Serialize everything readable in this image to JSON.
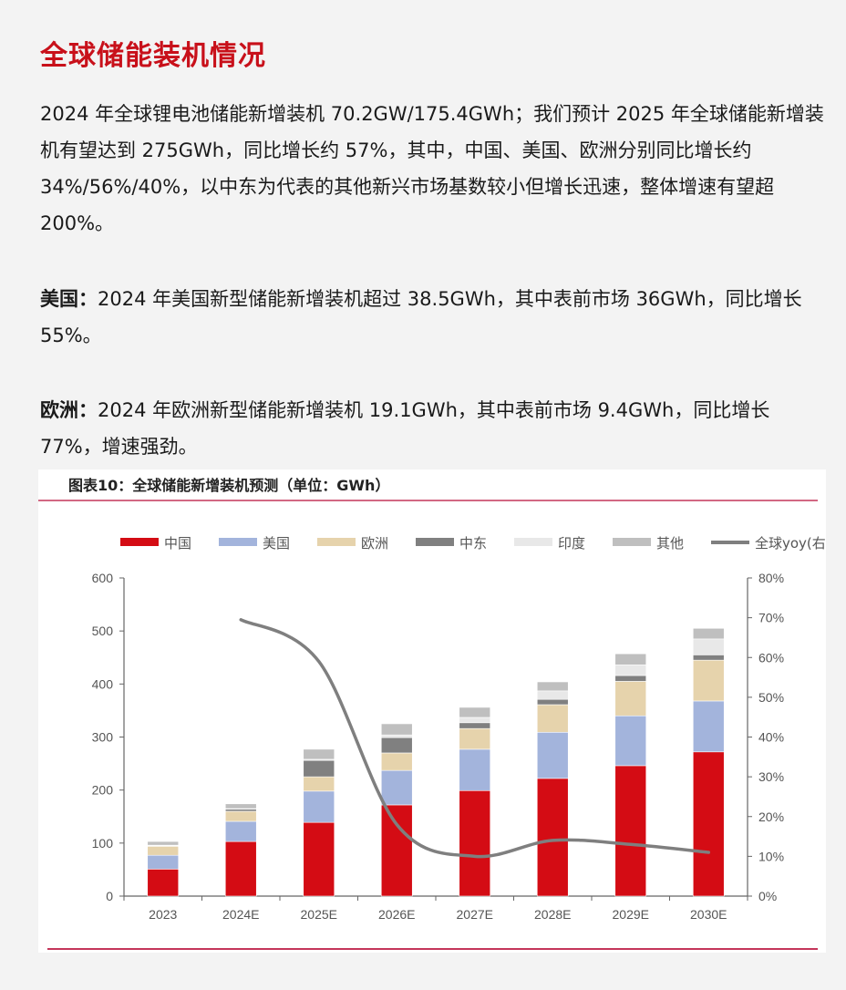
{
  "title": "全球储能装机情况",
  "paragraphs": [
    {
      "lead": "",
      "text": "2024 年全球锂电池储能新增装机 70.2GW/175.4GWh；我们预计 2025 年全球储能新增装机有望达到 275GWh，同比增长约 57%，其中，中国、美国、欧洲分别同比增长约 34%/56%/40%，以中东为代表的其他新兴市场基数较小但增长迅速，整体增速有望超 200%。"
    },
    {
      "lead": "美国：",
      "text": "2024 年美国新型储能新增装机超过 38.5GWh，其中表前市场 36GWh，同比增长 55%。"
    },
    {
      "lead": "欧洲：",
      "text": "2024 年欧洲新型储能新增装机 19.1GWh，其中表前市场 9.4GWh，同比增长 77%，增速强劲。"
    }
  ],
  "chart_data": {
    "type": "bar",
    "stacked": true,
    "title": "图表10：全球储能新增装机预测（单位：GWh）",
    "categories": [
      "2023",
      "2024E",
      "2025E",
      "2026E",
      "2027E",
      "2028E",
      "2029E",
      "2030E"
    ],
    "series": [
      {
        "name": "中国",
        "color": "#d40c14",
        "values": [
          51,
          103,
          139,
          172,
          199,
          222,
          246,
          272
        ]
      },
      {
        "name": "美国",
        "color": "#a3b4dc",
        "values": [
          26,
          38,
          59,
          65,
          78,
          87,
          94,
          96
        ]
      },
      {
        "name": "欧洲",
        "color": "#e6d3ac",
        "values": [
          17,
          19,
          27,
          33,
          39,
          52,
          65,
          77
        ]
      },
      {
        "name": "中东",
        "color": "#808080",
        "values": [
          1,
          4,
          31,
          29,
          11,
          10,
          11,
          10
        ]
      },
      {
        "name": "印度",
        "color": "#e8e8e8",
        "values": [
          1,
          1,
          2,
          5,
          10,
          16,
          20,
          30
        ]
      },
      {
        "name": "其他",
        "color": "#bfbfbf",
        "values": [
          7,
          9,
          19,
          21,
          19,
          17,
          21,
          20
        ]
      }
    ],
    "line_series": {
      "name": "全球yoy(右轴)",
      "color": "#7f7f7f",
      "categories": [
        "2024E",
        "2025E",
        "2026E",
        "2027E",
        "2028E",
        "2029E",
        "2030E"
      ],
      "values": [
        69.5,
        59,
        18,
        10,
        14,
        13,
        11
      ]
    },
    "ylim": [
      0,
      600
    ],
    "yticks": [
      0,
      100,
      200,
      300,
      400,
      500,
      600
    ],
    "y2lim": [
      0,
      80
    ],
    "y2ticks": [
      "0%",
      "10%",
      "20%",
      "30%",
      "40%",
      "50%",
      "60%",
      "70%",
      "80%"
    ],
    "legend_position": "top",
    "grid": false
  }
}
